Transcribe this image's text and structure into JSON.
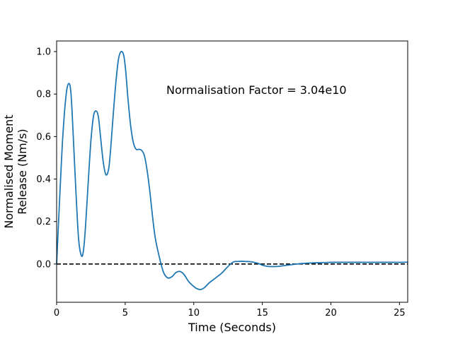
{
  "chart_data": {
    "type": "line",
    "xlabel": "Time (Seconds)",
    "ylabel_lines": [
      "Normalised Moment",
      "Release (Nm/s)"
    ],
    "annotation": "Normalisation Factor = 3.04e10",
    "xlim": [
      0,
      25.6
    ],
    "ylim": [
      -0.18,
      1.05
    ],
    "xticks": [
      0,
      5,
      10,
      15,
      20,
      25
    ],
    "yticks": [
      0.0,
      0.2,
      0.4,
      0.6,
      0.8,
      1.0
    ],
    "xtick_labels": [
      "0",
      "5",
      "10",
      "15",
      "20",
      "25"
    ],
    "ytick_labels": [
      "0.0",
      "0.2",
      "0.4",
      "0.6",
      "0.8",
      "1.0"
    ],
    "reference_line": {
      "y": 0.0,
      "style": "dashed",
      "color": "#000000"
    },
    "grid": false,
    "series": [
      {
        "color": "#1f77b4",
        "x": [
          0.0,
          0.2,
          0.45,
          0.7,
          0.9,
          1.05,
          1.2,
          1.4,
          1.6,
          1.8,
          1.95,
          2.1,
          2.3,
          2.5,
          2.7,
          2.9,
          3.05,
          3.2,
          3.4,
          3.6,
          3.8,
          3.95,
          4.1,
          4.3,
          4.5,
          4.7,
          4.9,
          5.05,
          5.2,
          5.4,
          5.6,
          5.8,
          6.0,
          6.2,
          6.4,
          6.6,
          6.8,
          7.0,
          7.2,
          7.5,
          7.8,
          8.1,
          8.4,
          8.7,
          9.0,
          9.3,
          9.6,
          9.9,
          10.2,
          10.5,
          10.8,
          11.1,
          11.4,
          11.7,
          12.0,
          12.3,
          12.6,
          12.9,
          13.2,
          13.5,
          13.8,
          14.1,
          14.4,
          14.7,
          15.0,
          15.3,
          15.6,
          15.9,
          16.2,
          16.5,
          17.0,
          17.5,
          18.0,
          18.5,
          19.0,
          19.5,
          20.0,
          20.5,
          21.0,
          21.5,
          22.0,
          22.5,
          23.0,
          23.5,
          24.0,
          24.5,
          25.0,
          25.6
        ],
        "y": [
          0.0,
          0.28,
          0.6,
          0.8,
          0.85,
          0.8,
          0.62,
          0.35,
          0.12,
          0.04,
          0.06,
          0.17,
          0.38,
          0.58,
          0.7,
          0.72,
          0.69,
          0.6,
          0.48,
          0.42,
          0.45,
          0.55,
          0.68,
          0.84,
          0.96,
          1.0,
          0.98,
          0.9,
          0.78,
          0.65,
          0.57,
          0.54,
          0.54,
          0.535,
          0.51,
          0.44,
          0.34,
          0.22,
          0.12,
          0.03,
          -0.04,
          -0.065,
          -0.06,
          -0.04,
          -0.035,
          -0.05,
          -0.08,
          -0.1,
          -0.115,
          -0.12,
          -0.11,
          -0.09,
          -0.075,
          -0.06,
          -0.045,
          -0.025,
          -0.005,
          0.01,
          0.012,
          0.013,
          0.012,
          0.011,
          0.008,
          0.003,
          -0.005,
          -0.01,
          -0.012,
          -0.012,
          -0.011,
          -0.008,
          -0.004,
          0.0,
          0.003,
          0.005,
          0.006,
          0.007,
          0.008,
          0.008,
          0.008,
          0.008,
          0.008,
          0.008,
          0.008,
          0.008,
          0.008,
          0.008,
          0.008,
          0.009
        ]
      }
    ]
  }
}
